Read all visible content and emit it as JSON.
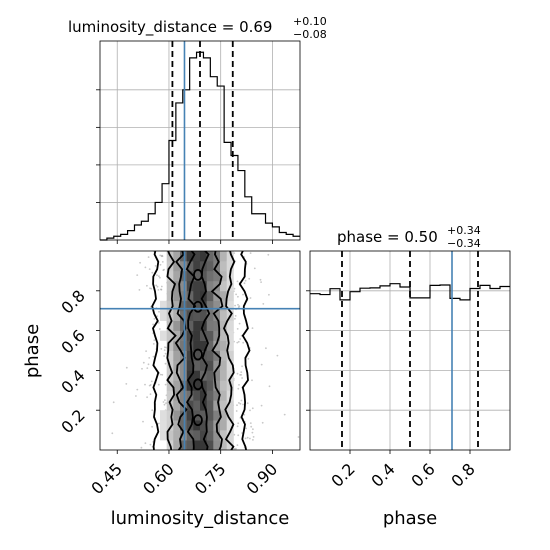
{
  "chart_data": {
    "type": "corner",
    "parameters": [
      "luminosity_distance",
      "phase"
    ],
    "truths": {
      "luminosity_distance": 0.645,
      "phase": 0.71
    },
    "panels": {
      "lum_hist": {
        "title_name": "luminosity_distance",
        "title_value": "0.69",
        "title_plus": "+0.10",
        "title_minus": "−0.08",
        "xlim": [
          0.4,
          0.98
        ],
        "quantiles": [
          0.61,
          0.69,
          0.785
        ],
        "bin_edges": [
          0.4,
          0.42,
          0.44,
          0.46,
          0.48,
          0.5,
          0.52,
          0.54,
          0.56,
          0.58,
          0.6,
          0.62,
          0.64,
          0.66,
          0.68,
          0.7,
          0.72,
          0.74,
          0.76,
          0.78,
          0.8,
          0.82,
          0.84,
          0.86,
          0.88,
          0.9,
          0.92,
          0.94,
          0.96,
          0.98
        ],
        "counts": [
          0.0,
          0.01,
          0.02,
          0.03,
          0.05,
          0.08,
          0.1,
          0.14,
          0.2,
          0.3,
          0.53,
          0.73,
          0.8,
          0.97,
          1.0,
          0.97,
          0.87,
          0.82,
          0.52,
          0.45,
          0.37,
          0.23,
          0.14,
          0.14,
          0.09,
          0.07,
          0.04,
          0.03,
          0.02
        ]
      },
      "phase_hist": {
        "title_name": "phase",
        "title_value": "0.50",
        "title_plus": "+0.34",
        "title_minus": "−0.34",
        "xlim": [
          0.0,
          1.0
        ],
        "quantiles": [
          0.16,
          0.5,
          0.84
        ],
        "bin_edges": [
          0.0,
          0.05,
          0.1,
          0.15,
          0.2,
          0.25,
          0.3,
          0.35,
          0.4,
          0.45,
          0.5,
          0.55,
          0.6,
          0.65,
          0.7,
          0.75,
          0.8,
          0.85,
          0.9,
          0.95,
          1.0
        ],
        "counts": [
          0.935,
          0.93,
          0.965,
          0.898,
          0.947,
          0.968,
          0.97,
          0.982,
          0.995,
          0.975,
          0.91,
          0.91,
          0.985,
          0.987,
          0.907,
          0.898,
          0.966,
          0.985,
          0.966,
          0.978
        ]
      },
      "joint": {
        "xlabel": "luminosity_distance",
        "ylabel": "phase",
        "xlim": [
          0.4,
          0.98
        ],
        "ylim": [
          0.0,
          1.0
        ]
      }
    },
    "axes": {
      "lum_ticks": [
        0.45,
        0.6,
        0.75,
        0.9
      ],
      "lum_tick_labels": [
        "0.45",
        "0.60",
        "0.75",
        "0.90"
      ],
      "phase_ticks": [
        0.2,
        0.4,
        0.6,
        0.8
      ],
      "phase_tick_labels": [
        "0.2",
        "0.4",
        "0.6",
        "0.8"
      ],
      "phase_y_ticks": [
        0.2,
        0.4,
        0.6,
        0.8
      ],
      "phase_y_tick_labels": [
        "0.2",
        "0.4",
        "0.6",
        "0.8"
      ]
    },
    "grid": true,
    "colors": {
      "truth": "#4682b4",
      "hist": "#000000",
      "grid": "#b0b0b0",
      "contour": "#000000"
    }
  }
}
